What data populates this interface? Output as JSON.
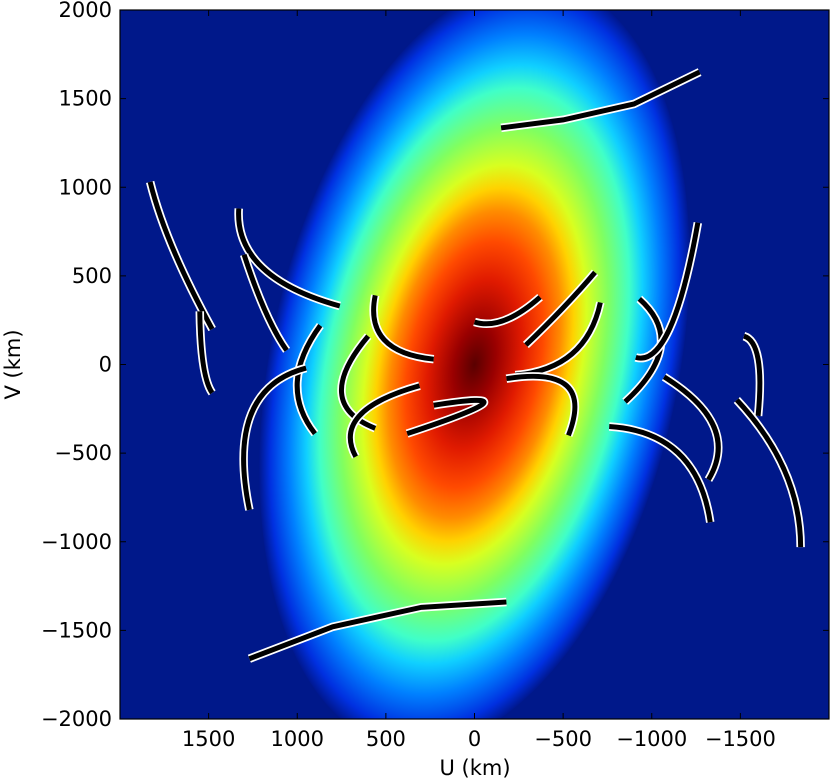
{
  "chart_data": {
    "type": "heatmap",
    "title": "",
    "xlabel": "U (km)",
    "ylabel": "V (km)",
    "xlim": [
      2000,
      -2000
    ],
    "ylim": [
      -2000,
      2000
    ],
    "x_inverted": true,
    "grid": false,
    "colormap": "jet",
    "xticks": [
      {
        "value": 1500,
        "label": "1500"
      },
      {
        "value": 1000,
        "label": "1000"
      },
      {
        "value": 500,
        "label": "500"
      },
      {
        "value": 0,
        "label": "0"
      },
      {
        "value": -500,
        "label": "−500"
      },
      {
        "value": -1000,
        "label": "−1000"
      },
      {
        "value": -1500,
        "label": "−1500"
      }
    ],
    "yticks": [
      {
        "value": 2000,
        "label": "2000"
      },
      {
        "value": 1500,
        "label": "1500"
      },
      {
        "value": 1000,
        "label": "1000"
      },
      {
        "value": 500,
        "label": "500"
      },
      {
        "value": 0,
        "label": "0"
      },
      {
        "value": -500,
        "label": "−500"
      },
      {
        "value": -1000,
        "label": "−1000"
      },
      {
        "value": -1500,
        "label": "−1500"
      },
      {
        "value": -2000,
        "label": "−2000"
      }
    ],
    "heatmap_field": {
      "center": [
        0,
        0
      ],
      "semi_major_km": 2200,
      "semi_minor_km": 1150,
      "tilt_deg_from_v_axis": 12
    },
    "uv_tracks": [
      {
        "points": [
          [
            -1270,
            1650
          ],
          [
            -900,
            1470
          ],
          [
            -500,
            1380
          ],
          [
            -150,
            1335
          ]
        ]
      },
      {
        "points": [
          [
            -180,
            -1340
          ],
          [
            300,
            -1370
          ],
          [
            800,
            -1480
          ],
          [
            1270,
            -1660
          ]
        ]
      },
      {
        "points": [
          [
            1830,
            1030
          ],
          [
            1700,
            650
          ],
          [
            1480,
            200
          ]
        ]
      },
      {
        "points": [
          [
            1330,
            880
          ],
          [
            1200,
            550
          ],
          [
            760,
            330
          ]
        ]
      },
      {
        "points": [
          [
            1300,
            620
          ],
          [
            1180,
            300
          ],
          [
            1060,
            80
          ]
        ]
      },
      {
        "points": [
          [
            1550,
            300
          ],
          [
            1530,
            0
          ],
          [
            1480,
            -160
          ]
        ]
      },
      {
        "points": [
          [
            870,
            220
          ],
          [
            1000,
            -100
          ],
          [
            900,
            -390
          ]
        ]
      },
      {
        "points": [
          [
            950,
            -20
          ],
          [
            1260,
            -280
          ],
          [
            1270,
            -820
          ]
        ]
      },
      {
        "points": [
          [
            560,
            390
          ],
          [
            510,
            140
          ],
          [
            230,
            30
          ]
        ]
      },
      {
        "points": [
          [
            600,
            160
          ],
          [
            750,
            -160
          ],
          [
            560,
            -360
          ]
        ]
      },
      {
        "points": [
          [
            310,
            -120
          ],
          [
            650,
            -290
          ],
          [
            670,
            -520
          ]
        ]
      },
      {
        "points": [
          [
            230,
            -230
          ],
          [
            -50,
            -220
          ],
          [
            380,
            -390
          ]
        ]
      },
      {
        "points": [
          [
            -370,
            380
          ],
          [
            -170,
            250
          ],
          [
            0,
            240
          ]
        ]
      },
      {
        "points": [
          [
            -680,
            520
          ],
          [
            -500,
            320
          ],
          [
            -290,
            110
          ]
        ]
      },
      {
        "points": [
          [
            -710,
            350
          ],
          [
            -550,
            60
          ],
          [
            -230,
            -60
          ]
        ]
      },
      {
        "points": [
          [
            -180,
            -80
          ],
          [
            -520,
            -120
          ],
          [
            -530,
            -400
          ]
        ]
      },
      {
        "points": [
          [
            -930,
            370
          ],
          [
            -1050,
            100
          ],
          [
            -850,
            -210
          ]
        ]
      },
      {
        "points": [
          [
            -1260,
            800
          ],
          [
            -1100,
            200
          ],
          [
            -910,
            40
          ]
        ]
      },
      {
        "points": [
          [
            -1070,
            -70
          ],
          [
            -1350,
            -350
          ],
          [
            -1320,
            -650
          ]
        ]
      },
      {
        "points": [
          [
            -760,
            -350
          ],
          [
            -1150,
            -500
          ],
          [
            -1330,
            -890
          ]
        ]
      },
      {
        "points": [
          [
            -1520,
            160
          ],
          [
            -1600,
            30
          ],
          [
            -1600,
            -290
          ]
        ]
      },
      {
        "points": [
          [
            -1480,
            -200
          ],
          [
            -1750,
            -600
          ],
          [
            -1840,
            -1030
          ]
        ]
      }
    ],
    "track_style": {
      "line_color": "#000000",
      "edge_color": "#ffffff"
    }
  }
}
